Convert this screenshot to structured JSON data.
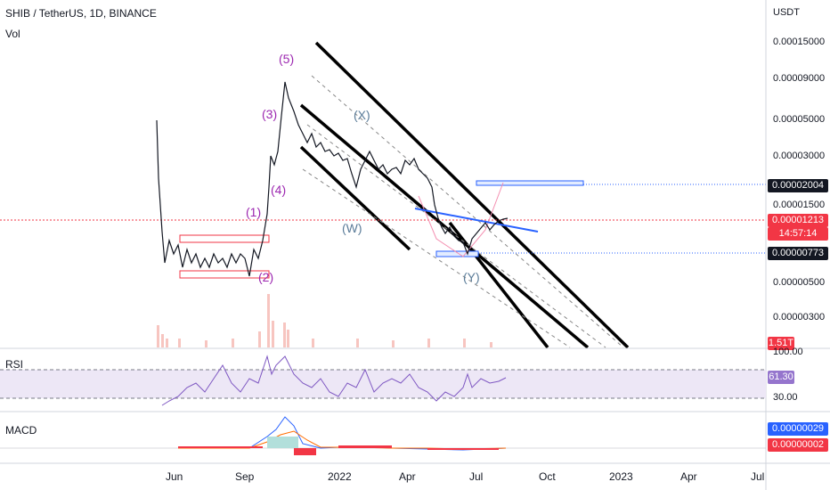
{
  "header": {
    "title": "SHIB / TetherUS, 1D, BINANCE",
    "volume_label": "Vol"
  },
  "price_axis": {
    "unit": "USDT",
    "ticks": [
      "0.00015000",
      "0.00009000",
      "0.00005000",
      "0.00003000",
      "0.00001500",
      "0.00000500",
      "0.00000300"
    ],
    "target_tag": "0.00002004",
    "current_price": "0.00001213",
    "countdown": "14:57:14",
    "support_tag": "0.00000773",
    "volume_tag": "1.51T"
  },
  "rsi": {
    "label": "RSI",
    "upper": "100.00",
    "value": "61.30",
    "lower": "30.00"
  },
  "macd": {
    "label": "MACD",
    "value1": "0.00000029",
    "value2": "0.00000002"
  },
  "time_axis": [
    "Jun",
    "Sep",
    "2022",
    "Apr",
    "Jul",
    "Oct",
    "2023",
    "Apr",
    "Jul"
  ],
  "waves": {
    "w1": "(1)",
    "w2": "(2)",
    "w3": "(3)",
    "w4": "(4)",
    "w5": "(5)",
    "wW": "(W)",
    "wX": "(X)",
    "wY": "(Y)"
  },
  "colors": {
    "candle": "#131722",
    "price_line": "#f23645",
    "target_box": "#2962ff",
    "trendline": "#2962ff",
    "rsi_line": "#7e57c2",
    "macd_line": "#2962ff",
    "macd_signal": "#ff6d00",
    "wave_impulse": "#9c27b0",
    "wave_corrective": "#5b7c99"
  }
}
